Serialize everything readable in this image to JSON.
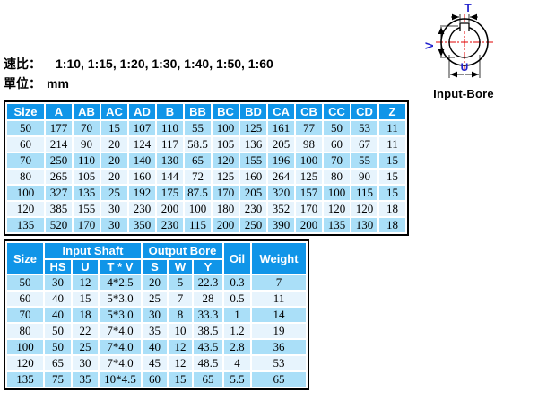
{
  "page": {
    "ratio_label": "速比：",
    "ratio_values": "1:10, 1:15, 1:20, 1:30, 1:40, 1:50, 1:60",
    "unit_label": "單位：",
    "unit_value": "mm"
  },
  "colors": {
    "header_bg": "#1095e8",
    "row_dark": "#aadff8",
    "row_light": "#e7f4fd",
    "diagram_label": "#2020cc",
    "centerline": "#e00000"
  },
  "diagram": {
    "caption": "Input-Bore",
    "dim_top": "T",
    "dim_left": "V",
    "dim_bottom": "U"
  },
  "dimension_table": {
    "columns": [
      "Size",
      "A",
      "AB",
      "AC",
      "AD",
      "B",
      "BB",
      "BC",
      "BD",
      "CA",
      "CB",
      "CC",
      "CD",
      "Z"
    ],
    "rows": [
      [
        "50",
        "177",
        "70",
        "15",
        "107",
        "110",
        "55",
        "100",
        "125",
        "161",
        "77",
        "50",
        "53",
        "11"
      ],
      [
        "60",
        "214",
        "90",
        "20",
        "124",
        "117",
        "58.5",
        "105",
        "136",
        "205",
        "98",
        "60",
        "67",
        "11"
      ],
      [
        "70",
        "250",
        "110",
        "20",
        "140",
        "130",
        "65",
        "120",
        "155",
        "196",
        "100",
        "70",
        "55",
        "15"
      ],
      [
        "80",
        "265",
        "105",
        "20",
        "160",
        "144",
        "72",
        "125",
        "160",
        "264",
        "125",
        "80",
        "90",
        "15"
      ],
      [
        "100",
        "327",
        "135",
        "25",
        "192",
        "175",
        "87.5",
        "170",
        "205",
        "320",
        "157",
        "100",
        "115",
        "15"
      ],
      [
        "120",
        "385",
        "155",
        "30",
        "230",
        "200",
        "100",
        "180",
        "230",
        "352",
        "170",
        "120",
        "120",
        "18"
      ],
      [
        "135",
        "520",
        "170",
        "30",
        "350",
        "230",
        "115",
        "200",
        "250",
        "390",
        "200",
        "135",
        "130",
        "18"
      ]
    ]
  },
  "shaft_table": {
    "header": {
      "size": "Size",
      "input_shaft": "Input Shaft",
      "output_bore": "Output Bore",
      "oil": "Oil",
      "weight": "Weight"
    },
    "sub_columns": [
      "HS",
      "U",
      "T * V",
      "S",
      "W",
      "Y"
    ],
    "rows": [
      [
        "50",
        "30",
        "12",
        "4*2.5",
        "20",
        "5",
        "22.3",
        "0.3",
        "7"
      ],
      [
        "60",
        "40",
        "15",
        "5*3.0",
        "25",
        "7",
        "28",
        "0.5",
        "11"
      ],
      [
        "70",
        "40",
        "18",
        "5*3.0",
        "30",
        "8",
        "33.3",
        "1",
        "14"
      ],
      [
        "80",
        "50",
        "22",
        "7*4.0",
        "35",
        "10",
        "38.5",
        "1.2",
        "19"
      ],
      [
        "100",
        "50",
        "25",
        "7*4.0",
        "40",
        "12",
        "43.5",
        "2.8",
        "36"
      ],
      [
        "120",
        "65",
        "30",
        "7*4.0",
        "45",
        "12",
        "48.5",
        "4",
        "53"
      ],
      [
        "135",
        "75",
        "35",
        "10*4.5",
        "60",
        "15",
        "65",
        "5.5",
        "65"
      ]
    ]
  }
}
